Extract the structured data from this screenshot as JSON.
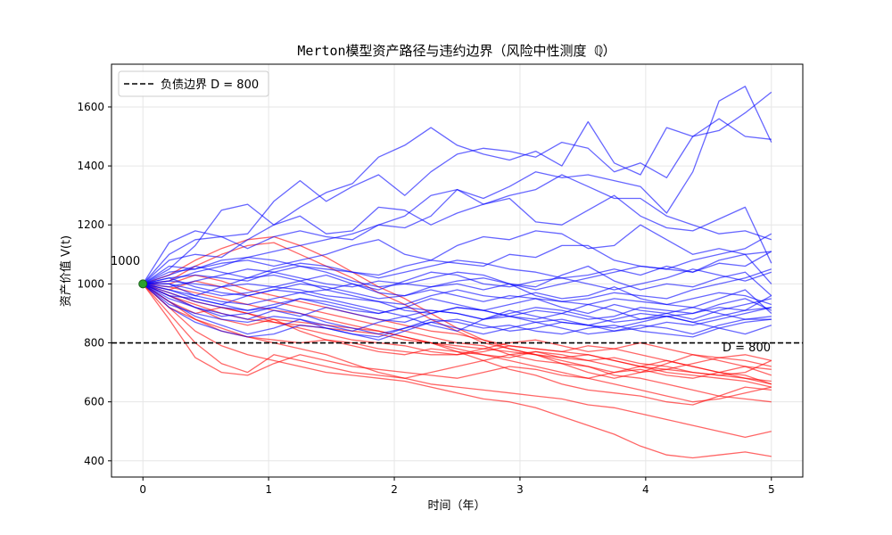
{
  "chart_data": {
    "type": "line",
    "title": "Merton模型资产路径与违约边界（风险中性测度 ℚ）",
    "xlabel": "时间（年）",
    "ylabel": "资产价值 V(t)",
    "xlim": [
      -0.25,
      5.25
    ],
    "ylim": [
      345,
      1745
    ],
    "x_ticks": [
      0,
      1,
      2,
      3,
      4,
      5
    ],
    "y_ticks": [
      400,
      600,
      800,
      1000,
      1200,
      1400,
      1600
    ],
    "grid": true,
    "legend": {
      "position": "top-left",
      "entries": [
        {
          "label": "负债边界 D = 800",
          "style": "dashed",
          "color": "#000000"
        }
      ]
    },
    "barrier": {
      "value": 800,
      "label": "D = 800",
      "color": "#000000",
      "style": "dashed"
    },
    "start_point": {
      "x": 0,
      "y": 1000,
      "label": "1000",
      "color": "#2ca02c"
    },
    "colors": {
      "survive": "#0000ff",
      "default": "#ff0000"
    },
    "x": [
      0,
      0.2083,
      0.4167,
      0.625,
      0.8333,
      1.0417,
      1.25,
      1.4583,
      1.6667,
      1.875,
      2.0833,
      2.2917,
      2.5,
      2.7083,
      2.9167,
      3.125,
      3.3333,
      3.5417,
      3.75,
      3.9583,
      4.1667,
      4.375,
      4.5833,
      4.7917,
      5
    ],
    "series": [
      {
        "status": "survive",
        "values": [
          1000,
          1140,
          1180,
          1160,
          1170,
          1280,
          1350,
          1280,
          1330,
          1370,
          1300,
          1380,
          1440,
          1460,
          1450,
          1430,
          1480,
          1460,
          1380,
          1410,
          1360,
          1500,
          1520,
          1580,
          1650
        ]
      },
      {
        "status": "survive",
        "values": [
          1000,
          1100,
          1150,
          1160,
          1120,
          1160,
          1180,
          1160,
          1150,
          1200,
          1230,
          1300,
          1320,
          1290,
          1330,
          1380,
          1360,
          1370,
          1350,
          1330,
          1240,
          1380,
          1620,
          1670,
          1480
        ]
      },
      {
        "status": "survive",
        "values": [
          1000,
          1050,
          1130,
          1250,
          1270,
          1200,
          1260,
          1310,
          1340,
          1430,
          1470,
          1530,
          1470,
          1440,
          1420,
          1450,
          1400,
          1550,
          1410,
          1370,
          1530,
          1500,
          1560,
          1500,
          1490
        ]
      },
      {
        "status": "survive",
        "values": [
          1000,
          1080,
          1100,
          1090,
          1150,
          1200,
          1230,
          1170,
          1180,
          1260,
          1250,
          1200,
          1240,
          1270,
          1300,
          1320,
          1370,
          1330,
          1290,
          1290,
          1230,
          1200,
          1170,
          1180,
          1150
        ]
      },
      {
        "status": "survive",
        "values": [
          1000,
          1060,
          1050,
          1080,
          1090,
          1110,
          1130,
          1150,
          1170,
          1200,
          1190,
          1230,
          1320,
          1270,
          1290,
          1210,
          1200,
          1250,
          1300,
          1230,
          1190,
          1180,
          1220,
          1260,
          1070
        ]
      },
      {
        "status": "survive",
        "values": [
          1000,
          1040,
          1050,
          1070,
          1080,
          1060,
          1080,
          1100,
          1130,
          1150,
          1100,
          1080,
          1130,
          1160,
          1150,
          1180,
          1170,
          1120,
          1130,
          1200,
          1150,
          1100,
          1120,
          1100,
          1000
        ]
      },
      {
        "status": "survive",
        "values": [
          1000,
          1020,
          1030,
          1020,
          1010,
          1040,
          1060,
          1050,
          1040,
          1030,
          1060,
          1080,
          1070,
          1060,
          1100,
          1090,
          1130,
          1130,
          1080,
          1060,
          1050,
          1080,
          1100,
          1120,
          1170
        ]
      },
      {
        "status": "survive",
        "values": [
          1000,
          1010,
          1000,
          990,
          1020,
          1030,
          1010,
          1030,
          1000,
          980,
          1010,
          1040,
          1030,
          1000,
          990,
          1010,
          1020,
          1030,
          1050,
          1030,
          1060,
          1040,
          1080,
          1100,
          1110
        ]
      },
      {
        "status": "survive",
        "values": [
          1000,
          980,
          960,
          990,
          1000,
          990,
          1010,
          980,
          1000,
          970,
          960,
          990,
          1000,
          980,
          1000,
          990,
          1030,
          1060,
          1010,
          980,
          1000,
          990,
          1020,
          1040,
          960
        ]
      },
      {
        "status": "survive",
        "values": [
          1000,
          1000,
          980,
          960,
          970,
          990,
          980,
          960,
          950,
          940,
          930,
          960,
          980,
          960,
          950,
          970,
          950,
          960,
          990,
          950,
          930,
          920,
          950,
          980,
          900
        ]
      },
      {
        "status": "survive",
        "values": [
          1000,
          960,
          950,
          930,
          910,
          920,
          950,
          930,
          910,
          900,
          920,
          950,
          930,
          910,
          930,
          950,
          920,
          900,
          930,
          910,
          900,
          880,
          910,
          930,
          950
        ]
      },
      {
        "status": "survive",
        "values": [
          1000,
          950,
          920,
          900,
          880,
          910,
          890,
          920,
          900,
          880,
          870,
          900,
          920,
          910,
          890,
          880,
          900,
          930,
          910,
          880,
          890,
          900,
          920,
          910,
          960
        ]
      },
      {
        "status": "survive",
        "values": [
          1000,
          940,
          890,
          860,
          830,
          850,
          880,
          860,
          840,
          870,
          890,
          860,
          840,
          880,
          910,
          890,
          870,
          860,
          880,
          900,
          890,
          870,
          890,
          910,
          920
        ]
      },
      {
        "status": "survive",
        "values": [
          1000,
          920,
          870,
          840,
          820,
          830,
          860,
          850,
          830,
          810,
          840,
          870,
          850,
          830,
          850,
          870,
          850,
          830,
          840,
          860,
          850,
          830,
          860,
          880,
          890
        ]
      },
      {
        "status": "survive",
        "values": [
          1000,
          930,
          900,
          880,
          870,
          890,
          880,
          850,
          830,
          820,
          850,
          880,
          870,
          850,
          860,
          840,
          830,
          850,
          860,
          840,
          830,
          820,
          850,
          870,
          880
        ]
      },
      {
        "status": "survive",
        "values": [
          1000,
          970,
          940,
          920,
          910,
          930,
          950,
          940,
          920,
          900,
          920,
          910,
          900,
          880,
          890,
          910,
          900,
          880,
          890,
          920,
          910,
          900,
          930,
          950,
          910
        ]
      },
      {
        "status": "survive",
        "values": [
          1000,
          1020,
          990,
          970,
          960,
          980,
          1000,
          990,
          970,
          950,
          960,
          980,
          960,
          940,
          960,
          950,
          940,
          930,
          950,
          940,
          930,
          950,
          970,
          960,
          930
        ]
      },
      {
        "status": "survive",
        "values": [
          1000,
          990,
          1010,
          1030,
          1050,
          1040,
          1020,
          1000,
          990,
          1010,
          1000,
          990,
          1010,
          1020,
          1000,
          980,
          1000,
          1020,
          1040,
          1060,
          1050,
          1040,
          1070,
          1060,
          1110
        ]
      },
      {
        "status": "survive",
        "values": [
          1000,
          1030,
          1060,
          1040,
          1020,
          1050,
          1070,
          1060,
          1040,
          1020,
          1040,
          1060,
          1080,
          1070,
          1050,
          1040,
          1020,
          1000,
          980,
          1000,
          1020,
          1050,
          1030,
          1010,
          1040
        ]
      },
      {
        "status": "survive",
        "values": [
          1000,
          1010,
          1040,
          1060,
          1090,
          1080,
          1060,
          1040,
          1010,
          990,
          1000,
          1020,
          1040,
          1030,
          1000,
          960,
          940,
          950,
          970,
          960,
          950,
          980,
          1000,
          1020,
          1050
        ]
      },
      {
        "status": "survive",
        "values": [
          1000,
          980,
          950,
          930,
          960,
          980,
          970,
          950,
          930,
          910,
          890,
          910,
          900,
          880,
          900,
          920,
          910,
          890,
          870,
          880,
          900,
          920,
          900,
          880,
          880
        ]
      },
      {
        "status": "survive",
        "values": [
          1000,
          960,
          920,
          890,
          900,
          920,
          900,
          870,
          850,
          830,
          850,
          870,
          880,
          860,
          840,
          850,
          870,
          860,
          850,
          870,
          890,
          870,
          850,
          830,
          860
        ]
      },
      {
        "status": "survive",
        "values": [
          1000,
          1000,
          960,
          940,
          930,
          950,
          970,
          980,
          960,
          940,
          910,
          900,
          920,
          910,
          890,
          870,
          880,
          860,
          840,
          850,
          870,
          860,
          880,
          900,
          920
        ]
      },
      {
        "status": "default",
        "values": [
          1000,
          920,
          880,
          840,
          820,
          810,
          800,
          810,
          790,
          770,
          760,
          780,
          770,
          760,
          750,
          770,
          760,
          740,
          750,
          730,
          720,
          700,
          690,
          680,
          660
        ]
      },
      {
        "status": "default",
        "values": [
          1000,
          960,
          930,
          900,
          880,
          870,
          860,
          850,
          840,
          830,
          810,
          800,
          790,
          780,
          770,
          760,
          750,
          760,
          740,
          720,
          700,
          690,
          680,
          670,
          650
        ]
      },
      {
        "status": "default",
        "values": [
          1000,
          980,
          1010,
          990,
          960,
          940,
          920,
          900,
          880,
          860,
          840,
          820,
          800,
          790,
          760,
          740,
          730,
          720,
          700,
          720,
          740,
          720,
          700,
          690,
          660
        ]
      },
      {
        "status": "default",
        "values": [
          1000,
          900,
          800,
          730,
          700,
          760,
          740,
          720,
          700,
          690,
          680,
          700,
          720,
          740,
          760,
          770,
          750,
          740,
          720,
          700,
          710,
          730,
          750,
          760,
          740
        ]
      },
      {
        "status": "default",
        "values": [
          1000,
          880,
          750,
          700,
          690,
          730,
          760,
          740,
          720,
          710,
          700,
          690,
          680,
          700,
          720,
          710,
          690,
          680,
          700,
          710,
          690,
          680,
          700,
          720,
          710
        ]
      },
      {
        "status": "default",
        "values": [
          1000,
          1010,
          1060,
          1100,
          1130,
          1140,
          1100,
          1060,
          1020,
          970,
          930,
          880,
          840,
          800,
          780,
          760,
          740,
          720,
          690,
          680,
          660,
          640,
          620,
          610,
          600
        ]
      },
      {
        "status": "default",
        "values": [
          1000,
          1030,
          1080,
          1120,
          1150,
          1160,
          1130,
          1090,
          1040,
          990,
          950,
          900,
          850,
          810,
          780,
          760,
          730,
          700,
          680,
          700,
          730,
          760,
          740,
          720,
          690
        ]
      },
      {
        "status": "default",
        "values": [
          1000,
          960,
          920,
          880,
          860,
          880,
          840,
          810,
          800,
          780,
          770,
          760,
          760,
          770,
          790,
          780,
          770,
          790,
          780,
          760,
          740,
          720,
          700,
          680,
          670
        ]
      },
      {
        "status": "default",
        "values": [
          1000,
          940,
          900,
          920,
          900,
          870,
          850,
          830,
          810,
          800,
          790,
          770,
          760,
          780,
          800,
          810,
          790,
          770,
          780,
          800,
          780,
          760,
          750,
          740,
          720
        ]
      },
      {
        "status": "default",
        "values": [
          1000,
          990,
          970,
          950,
          930,
          910,
          900,
          880,
          860,
          840,
          820,
          800,
          770,
          740,
          710,
          690,
          660,
          640,
          630,
          620,
          600,
          590,
          620,
          650,
          640
        ]
      },
      {
        "status": "default",
        "values": [
          1000,
          940,
          880,
          850,
          820,
          800,
          780,
          760,
          730,
          700,
          680,
          660,
          650,
          640,
          630,
          620,
          610,
          590,
          580,
          560,
          540,
          520,
          500,
          480,
          500
        ]
      },
      {
        "status": "default",
        "values": [
          1000,
          920,
          840,
          790,
          760,
          740,
          720,
          700,
          690,
          680,
          670,
          650,
          630,
          610,
          600,
          580,
          550,
          520,
          490,
          450,
          420,
          410,
          420,
          430,
          415
        ]
      },
      {
        "status": "default",
        "values": [
          1000,
          970,
          940,
          920,
          900,
          880,
          870,
          860,
          850,
          840,
          820,
          800,
          780,
          760,
          740,
          720,
          700,
          680,
          660,
          640,
          620,
          600,
          610,
          630,
          650
        ]
      },
      {
        "status": "default",
        "values": [
          1000,
          1000,
          1030,
          1010,
          980,
          960,
          940,
          920,
          900,
          880,
          860,
          840,
          830,
          810,
          790,
          780,
          770,
          760,
          740,
          720,
          710,
          700,
          690,
          700,
          740
        ]
      }
    ]
  }
}
